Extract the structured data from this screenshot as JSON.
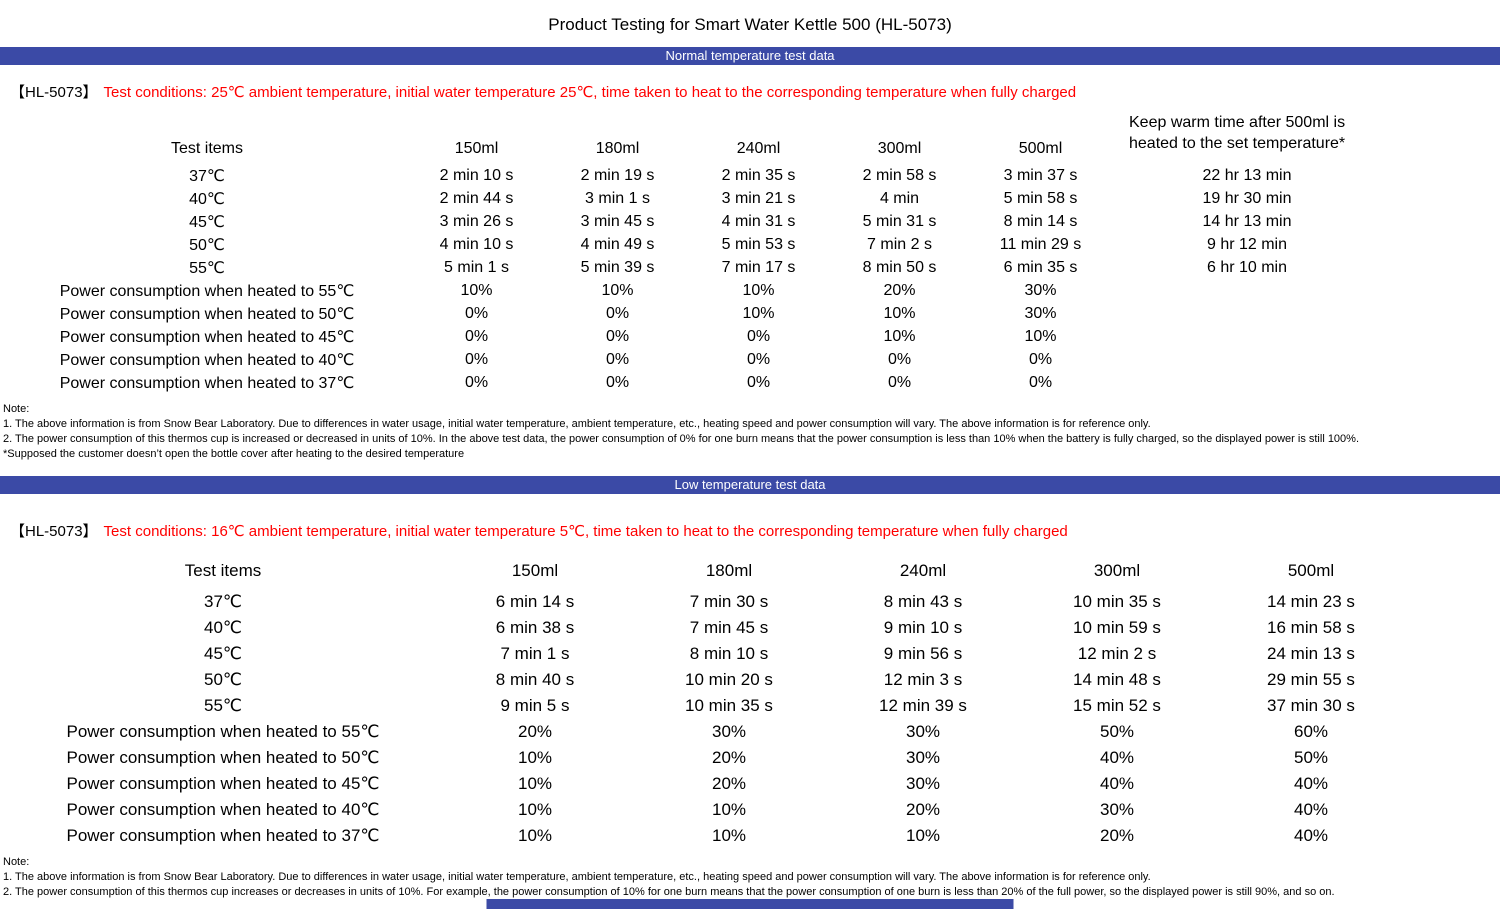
{
  "colors": {
    "banner_bg": "#3B4AA6",
    "condition_red": "#FF0000",
    "text": "#000000",
    "page_bg": "#FFFFFF"
  },
  "page": {
    "title": "Product Testing for Smart Water Kettle 500 (HL-5073)"
  },
  "sections": [
    {
      "banner": "Normal temperature test data",
      "model_tag": "【HL-5073】",
      "conditions": "Test conditions: 25℃ ambient temperature, initial water temperature 25℃, time taken to heat to the corresponding temperature when fully charged",
      "table": {
        "header_label": "Test items",
        "columns": [
          "150ml",
          "180ml",
          "240ml",
          "300ml",
          "500ml"
        ],
        "keep_warm_header": "Keep warm time after 500ml is heated to the set temperature*",
        "rows": [
          {
            "label": "37℃",
            "values": [
              "2 min 10 s",
              "2 min 19 s",
              "2 min 35 s",
              "2 min 58 s",
              "3 min 37 s"
            ],
            "keep_warm": "22 hr 13 min"
          },
          {
            "label": "40℃",
            "values": [
              "2 min 44 s",
              "3 min 1 s",
              "3 min 21 s",
              "4 min",
              "5 min 58 s"
            ],
            "keep_warm": "19 hr 30 min"
          },
          {
            "label": "45℃",
            "values": [
              "3 min 26 s",
              "3 min 45 s",
              "4 min 31 s",
              "5 min 31 s",
              "8 min 14 s"
            ],
            "keep_warm": "14 hr 13 min"
          },
          {
            "label": "50℃",
            "values": [
              "4 min 10 s",
              "4 min 49 s",
              "5 min 53 s",
              "7 min 2 s",
              "11 min 29 s"
            ],
            "keep_warm": "9 hr 12 min"
          },
          {
            "label": "55℃",
            "values": [
              "5 min 1 s",
              "5 min 39 s",
              "7 min 17 s",
              "8 min 50 s",
              "6 min 35 s"
            ],
            "keep_warm": "6 hr 10 min"
          },
          {
            "label": "Power consumption when heated to 55℃",
            "values": [
              "10%",
              "10%",
              "10%",
              "20%",
              "30%"
            ],
            "keep_warm": ""
          },
          {
            "label": "Power consumption when heated to 50℃",
            "values": [
              "0%",
              "0%",
              "10%",
              "10%",
              "30%"
            ],
            "keep_warm": ""
          },
          {
            "label": "Power consumption when heated to 45℃",
            "values": [
              "0%",
              "0%",
              "0%",
              "10%",
              "10%"
            ],
            "keep_warm": ""
          },
          {
            "label": "Power consumption when heated to 40℃",
            "values": [
              "0%",
              "0%",
              "0%",
              "0%",
              "0%"
            ],
            "keep_warm": ""
          },
          {
            "label": "Power consumption when heated to 37℃",
            "values": [
              "0%",
              "0%",
              "0%",
              "0%",
              "0%"
            ],
            "keep_warm": ""
          }
        ]
      },
      "notes": [
        "Note:",
        "1. The above information is from Snow Bear Laboratory. Due to differences in water usage, initial water temperature, ambient temperature, etc., heating speed and power consumption will vary. The above information is for reference only.",
        "2. The power consumption of this thermos cup is increased or decreased in units of 10%. In the above test data, the power consumption of 0% for one burn means that the power consumption is less than 10% when the battery is fully charged, so the displayed power is still 100%.",
        "*Supposed the customer doesn’t open the bottle cover after heating to the desired temperature"
      ]
    },
    {
      "banner": "Low temperature test data",
      "model_tag": "【HL-5073】",
      "conditions": "Test conditions: 16℃ ambient temperature, initial water temperature 5℃, time taken to heat to the corresponding temperature when fully charged",
      "table": {
        "header_label": "Test items",
        "columns": [
          "150ml",
          "180ml",
          "240ml",
          "300ml",
          "500ml"
        ],
        "keep_warm_header": "",
        "rows": [
          {
            "label": "37℃",
            "values": [
              "6 min 14 s",
              "7 min 30 s",
              "8 min 43 s",
              "10 min 35 s",
              "14 min 23 s"
            ]
          },
          {
            "label": "40℃",
            "values": [
              "6 min 38 s",
              "7 min 45 s",
              "9 min 10 s",
              "10 min 59 s",
              "16 min 58 s"
            ]
          },
          {
            "label": "45℃",
            "values": [
              "7 min 1 s",
              "8 min 10 s",
              "9 min 56 s",
              "12 min 2 s",
              "24 min 13 s"
            ]
          },
          {
            "label": "50℃",
            "values": [
              "8 min 40 s",
              "10 min 20 s",
              "12 min 3 s",
              "14 min 48 s",
              "29 min 55 s"
            ]
          },
          {
            "label": "55℃",
            "values": [
              "9 min 5 s",
              "10 min 35 s",
              "12 min 39 s",
              "15 min 52 s",
              "37 min 30 s"
            ]
          },
          {
            "label": "Power consumption when heated to 55℃",
            "values": [
              "20%",
              "30%",
              "30%",
              "50%",
              "60%"
            ]
          },
          {
            "label": "Power consumption when heated to 50℃",
            "values": [
              "10%",
              "20%",
              "30%",
              "40%",
              "50%"
            ]
          },
          {
            "label": "Power consumption when heated to 45℃",
            "values": [
              "10%",
              "20%",
              "30%",
              "40%",
              "40%"
            ]
          },
          {
            "label": "Power consumption when heated to 40℃",
            "values": [
              "10%",
              "10%",
              "20%",
              "30%",
              "40%"
            ]
          },
          {
            "label": "Power consumption when heated to 37℃",
            "values": [
              "10%",
              "10%",
              "10%",
              "20%",
              "40%"
            ]
          }
        ]
      },
      "notes": [
        "Note:",
        "1. The above information is from Snow Bear Laboratory. Due to differences in water usage, initial water temperature, ambient temperature, etc., heating speed and power consumption will vary. The above information is for reference only.",
        "2. The power consumption of this thermos cup increases or decreases in units of 10%. For example, the power consumption of 10% for one burn means that the power consumption of one burn is less than 20% of the full power, so the displayed power is still 90%, and so on."
      ]
    }
  ]
}
